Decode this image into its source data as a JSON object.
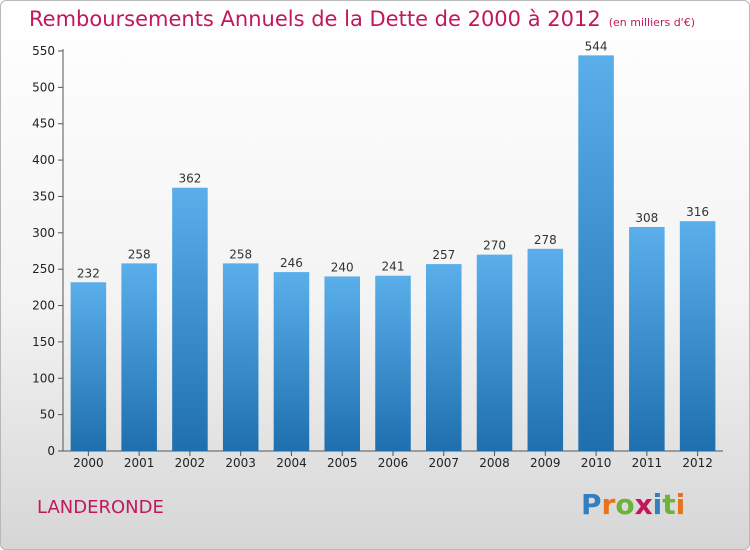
{
  "header": {
    "title": "Remboursements Annuels de la Dette de 2000 à 2012",
    "subtitle": "(en milliers d'€)"
  },
  "footer": {
    "commune": "LANDERONDE",
    "logo_text": "Proxiti"
  },
  "colors": {
    "title": "#c2185b",
    "bar_top": "#5aafeb",
    "bar_bottom": "#1f6fae"
  },
  "chart_data": {
    "type": "bar",
    "title": "Remboursements Annuels de la Dette de 2000 à 2012",
    "subtitle": "(en milliers d'€)",
    "categories": [
      "2000",
      "2001",
      "2002",
      "2003",
      "2004",
      "2005",
      "2006",
      "2007",
      "2008",
      "2009",
      "2010",
      "2011",
      "2012"
    ],
    "values": [
      232,
      258,
      362,
      258,
      246,
      240,
      241,
      257,
      270,
      278,
      544,
      308,
      316
    ],
    "ylim": [
      0,
      550
    ],
    "yticks": [
      0,
      50,
      100,
      150,
      200,
      250,
      300,
      350,
      400,
      450,
      500,
      550
    ],
    "grid": false,
    "data_labels": true
  }
}
